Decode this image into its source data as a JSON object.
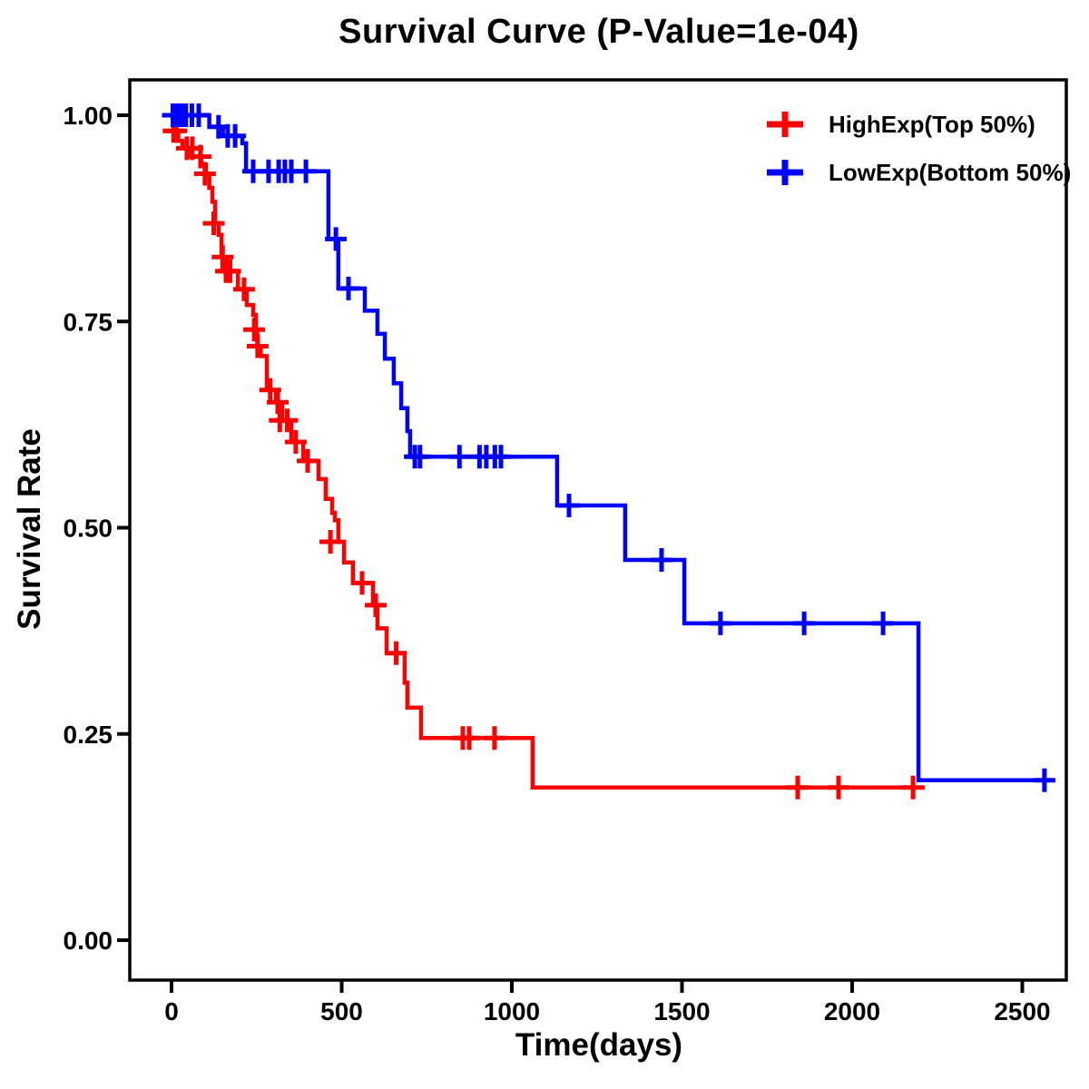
{
  "chart": {
    "title": "Survival Curve (P-Value=1e-04)",
    "xlabel": "Time(days)",
    "ylabel": "Survival Rate",
    "p_value": "1e-04"
  },
  "chart_data": {
    "type": "line",
    "subtype": "kaplan-meier-step-curve",
    "title": "Survival Curve (P-Value=1e-04)",
    "xlabel": "Time(days)",
    "ylabel": "Survival Rate",
    "xlim": [
      0,
      2600
    ],
    "ylim": [
      0,
      1
    ],
    "grid": false,
    "legend_position": "top-right",
    "x_ticks": [
      {
        "value": 0,
        "label": "0"
      },
      {
        "value": 500,
        "label": "500"
      },
      {
        "value": 1000,
        "label": "1000"
      },
      {
        "value": 1500,
        "label": "1500"
      },
      {
        "value": 2000,
        "label": "2000"
      },
      {
        "value": 2500,
        "label": "2500"
      }
    ],
    "y_ticks": [
      {
        "value": 0.0,
        "label": "0.00"
      },
      {
        "value": 0.25,
        "label": "0.25"
      },
      {
        "value": 0.5,
        "label": "0.50"
      },
      {
        "value": 0.75,
        "label": "0.75"
      },
      {
        "value": 1.0,
        "label": "1.00"
      }
    ],
    "series": [
      {
        "id": "highexp",
        "name": "HighExp(Top 50%)",
        "color": "#FF0000",
        "end_time": 2213,
        "steps": [
          [
            0,
            1.0
          ],
          [
            10,
            0.981
          ],
          [
            20,
            0.969
          ],
          [
            32,
            0.96
          ],
          [
            58,
            0.95
          ],
          [
            88,
            0.94
          ],
          [
            101,
            0.929
          ],
          [
            111,
            0.912
          ],
          [
            120,
            0.895
          ],
          [
            128,
            0.869
          ],
          [
            138,
            0.855
          ],
          [
            147,
            0.828
          ],
          [
            162,
            0.811
          ],
          [
            195,
            0.789
          ],
          [
            221,
            0.77
          ],
          [
            240,
            0.758
          ],
          [
            248,
            0.74
          ],
          [
            252,
            0.72
          ],
          [
            262,
            0.708
          ],
          [
            280,
            0.667
          ],
          [
            307,
            0.652
          ],
          [
            325,
            0.63
          ],
          [
            352,
            0.604
          ],
          [
            387,
            0.581
          ],
          [
            432,
            0.559
          ],
          [
            453,
            0.535
          ],
          [
            472,
            0.518
          ],
          [
            480,
            0.509
          ],
          [
            490,
            0.483
          ],
          [
            507,
            0.458
          ],
          [
            533,
            0.433
          ],
          [
            592,
            0.406
          ],
          [
            605,
            0.378
          ],
          [
            632,
            0.348
          ],
          [
            685,
            0.312
          ],
          [
            693,
            0.282
          ],
          [
            733,
            0.245
          ],
          [
            1061,
            0.185
          ]
        ],
        "censors": [
          [
            6,
            0.981
          ],
          [
            14,
            0.981
          ],
          [
            45,
            0.96
          ],
          [
            61,
            0.96
          ],
          [
            85,
            0.95
          ],
          [
            98,
            0.929
          ],
          [
            124,
            0.869
          ],
          [
            150,
            0.828
          ],
          [
            160,
            0.811
          ],
          [
            172,
            0.811
          ],
          [
            213,
            0.789
          ],
          [
            243,
            0.74
          ],
          [
            253,
            0.72
          ],
          [
            290,
            0.667
          ],
          [
            312,
            0.652
          ],
          [
            318,
            0.63
          ],
          [
            340,
            0.63
          ],
          [
            365,
            0.604
          ],
          [
            400,
            0.581
          ],
          [
            467,
            0.483
          ],
          [
            560,
            0.433
          ],
          [
            600,
            0.406
          ],
          [
            660,
            0.348
          ],
          [
            856,
            0.245
          ],
          [
            875,
            0.245
          ],
          [
            949,
            0.245
          ],
          [
            1840,
            0.185
          ],
          [
            1960,
            0.185
          ],
          [
            2179,
            0.185
          ]
        ]
      },
      {
        "id": "lowexp",
        "name": "LowExp(Bottom 50%)",
        "color": "#0000FF",
        "end_time": 2595,
        "steps": [
          [
            0,
            1.0
          ],
          [
            111,
            0.986
          ],
          [
            151,
            0.975
          ],
          [
            208,
            0.966
          ],
          [
            219,
            0.932
          ],
          [
            461,
            0.85
          ],
          [
            490,
            0.79
          ],
          [
            568,
            0.763
          ],
          [
            605,
            0.735
          ],
          [
            627,
            0.705
          ],
          [
            653,
            0.675
          ],
          [
            675,
            0.645
          ],
          [
            693,
            0.617
          ],
          [
            701,
            0.586
          ],
          [
            1133,
            0.527
          ],
          [
            1333,
            0.461
          ],
          [
            1507,
            0.384
          ],
          [
            2195,
            0.194
          ]
        ],
        "censors": [
          [
            4,
            1.0
          ],
          [
            10,
            1.0
          ],
          [
            16,
            1.0
          ],
          [
            24,
            1.0
          ],
          [
            32,
            1.0
          ],
          [
            42,
            1.0
          ],
          [
            60,
            1.0
          ],
          [
            80,
            1.0
          ],
          [
            138,
            0.986
          ],
          [
            165,
            0.975
          ],
          [
            187,
            0.975
          ],
          [
            240,
            0.932
          ],
          [
            285,
            0.932
          ],
          [
            315,
            0.932
          ],
          [
            333,
            0.932
          ],
          [
            352,
            0.932
          ],
          [
            395,
            0.932
          ],
          [
            483,
            0.85
          ],
          [
            520,
            0.79
          ],
          [
            715,
            0.586
          ],
          [
            730,
            0.586
          ],
          [
            846,
            0.586
          ],
          [
            905,
            0.586
          ],
          [
            925,
            0.586
          ],
          [
            950,
            0.586
          ],
          [
            968,
            0.586
          ],
          [
            1168,
            0.527
          ],
          [
            1440,
            0.461
          ],
          [
            1613,
            0.384
          ],
          [
            1859,
            0.384
          ],
          [
            2091,
            0.384
          ],
          [
            2565,
            0.194
          ]
        ]
      }
    ]
  }
}
